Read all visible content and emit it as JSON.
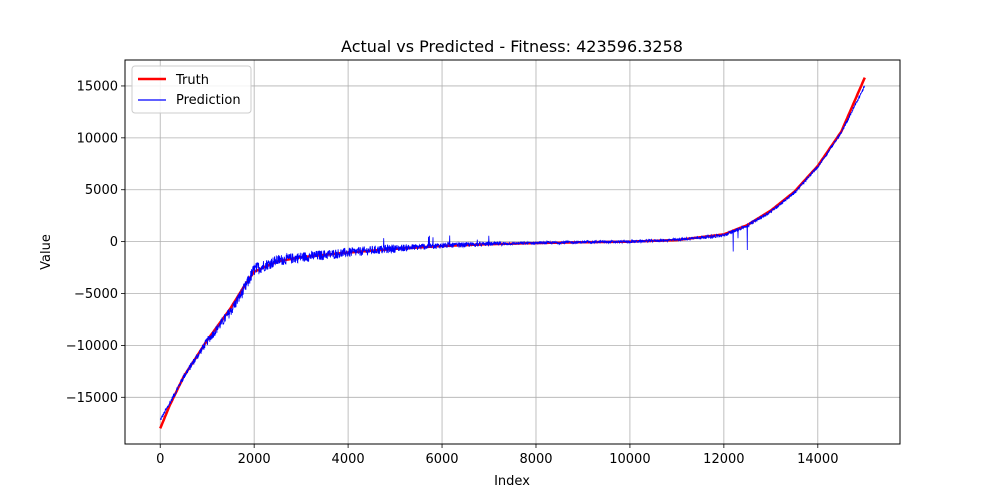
{
  "chart_data": {
    "type": "line",
    "title": "Actual vs Predicted - Fitness: 423596.3258",
    "xlabel": "Index",
    "ylabel": "Value",
    "xlim": [
      -750,
      15750
    ],
    "ylim": [
      -19500,
      17500
    ],
    "xticks": [
      0,
      2000,
      4000,
      6000,
      8000,
      10000,
      12000,
      14000
    ],
    "yticks": [
      -15000,
      -10000,
      -5000,
      0,
      5000,
      10000,
      15000
    ],
    "xtick_labels": [
      "0",
      "2000",
      "4000",
      "6000",
      "8000",
      "10000",
      "12000",
      "14000"
    ],
    "ytick_labels": [
      "−15000",
      "−10000",
      "−5000",
      "0",
      "5000",
      "10000",
      "15000"
    ],
    "grid": true,
    "legend_position": "top-left",
    "series": [
      {
        "name": "Truth",
        "color": "#ff0000",
        "x": [
          0,
          200,
          500,
          1000,
          1500,
          1800,
          2000,
          2500,
          3000,
          4000,
          5000,
          6000,
          7000,
          8000,
          9000,
          10000,
          11000,
          12000,
          12500,
          13000,
          13500,
          14000,
          14500,
          15000
        ],
        "y": [
          -18000,
          -15800,
          -13000,
          -9500,
          -6400,
          -4200,
          -2900,
          -1900,
          -1500,
          -1050,
          -700,
          -420,
          -250,
          -140,
          -60,
          0,
          150,
          700,
          1600,
          3000,
          4800,
          7300,
          10600,
          15800
        ]
      },
      {
        "name": "Prediction",
        "color": "#0000ff",
        "x": [
          0,
          200,
          500,
          1000,
          1500,
          1800,
          2000,
          2500,
          3000,
          4000,
          5000,
          6000,
          7000,
          8000,
          9000,
          10000,
          11000,
          12000,
          12500,
          13000,
          13500,
          14000,
          14500,
          15000
        ],
        "y": [
          -17200,
          -15600,
          -13000,
          -9600,
          -6700,
          -4500,
          -2700,
          -1800,
          -1500,
          -1050,
          -650,
          -380,
          -230,
          -130,
          -50,
          0,
          180,
          600,
          1550,
          2900,
          4700,
          7200,
          10500,
          15000
        ]
      }
    ]
  }
}
